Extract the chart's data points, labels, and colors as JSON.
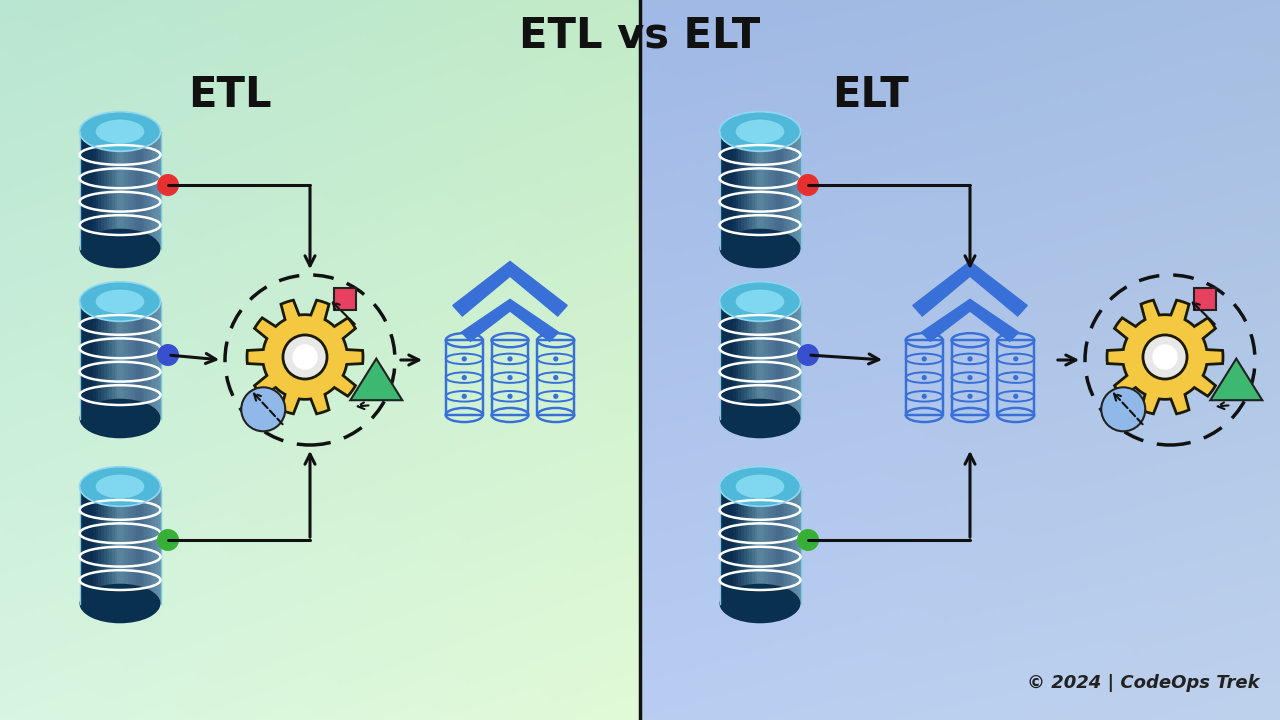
{
  "title": "ETL vs ELT",
  "etl_label": "ETL",
  "elt_label": "ELT",
  "copyright": "© 2024 | CodeOps Trek",
  "gear_color": "#f5c842",
  "gear_edge": "#1a1a00",
  "square_color": "#e84060",
  "triangle_color": "#3db870",
  "circle_small_color": "#90b8e8",
  "dot_red": "#e83030",
  "dot_blue": "#3850d0",
  "dot_green": "#38b038",
  "warehouse_stroke": "#3870d8",
  "arrow_color": "#111111",
  "divider_color": "#111111"
}
